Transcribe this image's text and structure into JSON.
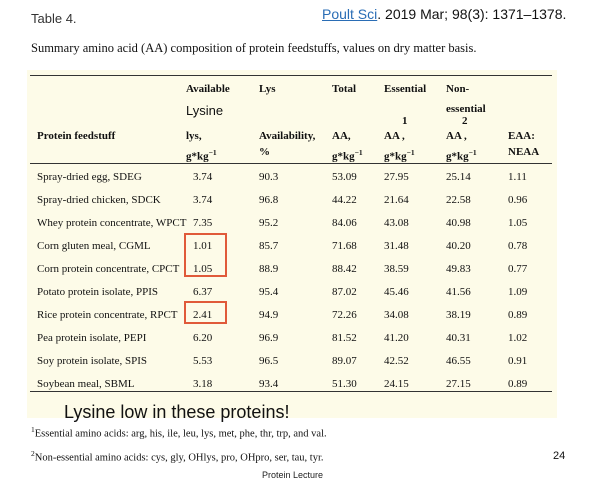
{
  "table_label": "Table 4.",
  "citation": {
    "journal": "Poult Sci",
    "rest": ". 2019 Mar; 98(3): 1371–1378."
  },
  "caption": "Summary amino acid (AA) composition of protein feedstuffs, values on dry matter basis.",
  "headers": {
    "feed": "Protein feedstuff",
    "avail_lys_1": "Available",
    "avail_lys_2": "lys,",
    "avail_lys_3": "g*kg",
    "lys_avail_1": "Lys",
    "lys_avail_2": "Availability,",
    "lys_avail_3": "%",
    "total_1": "Total",
    "total_2": "AA,",
    "total_3": "g*kg",
    "ess_1": "Essential",
    "ess_sup": "1",
    "ess_2": "AA ,",
    "ess_3": "g*kg",
    "non_1": "Non-",
    "non_2": "essential",
    "non_sup": "2",
    "non_3": "AA ,",
    "non_4": "g*kg",
    "ratio_1": "EAA:",
    "ratio_2": "NEAA",
    "neg_one": "−1"
  },
  "annotations": {
    "lysine": "Lysine",
    "low": "Lysine low in these proteins!"
  },
  "rows": [
    {
      "name": "Spray-dried egg, SDEG",
      "lys": "3.74",
      "avail": "90.3",
      "total": "53.09",
      "eaa": "27.95",
      "neaa": "25.14",
      "ratio": "1.11"
    },
    {
      "name": "Spray-dried chicken, SDCK",
      "lys": "3.74",
      "avail": "96.8",
      "total": "44.22",
      "eaa": "21.64",
      "neaa": "22.58",
      "ratio": "0.96"
    },
    {
      "name": "Whey protein concentrate, WPCT",
      "lys": "7.35",
      "avail": "95.2",
      "total": "84.06",
      "eaa": "43.08",
      "neaa": "40.98",
      "ratio": "1.05"
    },
    {
      "name": "Corn gluten meal, CGML",
      "lys": "1.01",
      "avail": "85.7",
      "total": "71.68",
      "eaa": "31.48",
      "neaa": "40.20",
      "ratio": "0.78"
    },
    {
      "name": "Corn protein concentrate, CPCT",
      "lys": "1.05",
      "avail": "88.9",
      "total": "88.42",
      "eaa": "38.59",
      "neaa": "49.83",
      "ratio": "0.77"
    },
    {
      "name": "Potato protein isolate, PPIS",
      "lys": "6.37",
      "avail": "95.4",
      "total": "87.02",
      "eaa": "45.46",
      "neaa": "41.56",
      "ratio": "1.09"
    },
    {
      "name": "Rice protein concentrate, RPCT",
      "lys": "2.41",
      "avail": "94.9",
      "total": "72.26",
      "eaa": "34.08",
      "neaa": "38.19",
      "ratio": "0.89"
    },
    {
      "name": "Pea protein isolate, PEPI",
      "lys": "6.20",
      "avail": "96.9",
      "total": "81.52",
      "eaa": "41.20",
      "neaa": "40.31",
      "ratio": "1.02"
    },
    {
      "name": "Soy protein isolate, SPIS",
      "lys": "5.53",
      "avail": "96.5",
      "total": "89.07",
      "eaa": "42.52",
      "neaa": "46.55",
      "ratio": "0.91"
    },
    {
      "name": "Soybean meal, SBML",
      "lys": "3.18",
      "avail": "93.4",
      "total": "51.30",
      "eaa": "24.15",
      "neaa": "27.15",
      "ratio": "0.89"
    }
  ],
  "footnotes": {
    "fn1_mark": "1",
    "fn1": "Essential amino acids: arg, his, ile, leu, lys, met, phe, thr, trp, and val.",
    "fn2_mark": "2",
    "fn2": "Non-essential amino acids: cys, gly, OHlys, pro, OHpro, ser, tau, tyr."
  },
  "slide_number": "24",
  "footer": "Protein Lecture",
  "highlight_color": "#e05a3a",
  "link_color": "#2a6db5"
}
